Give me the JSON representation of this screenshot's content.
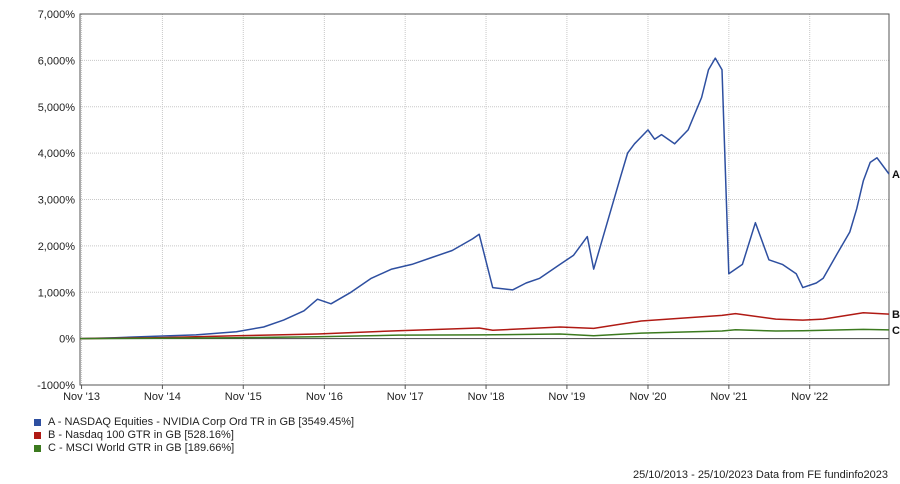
{
  "chart_data": {
    "type": "line",
    "x_ticks": [
      "Nov '13",
      "Nov '14",
      "Nov '15",
      "Nov '16",
      "Nov '17",
      "Nov '18",
      "Nov '19",
      "Nov '20",
      "Nov '21",
      "Nov '22"
    ],
    "y_ticks": [
      "7,000%",
      "6,000%",
      "5,000%",
      "4,000%",
      "3,000%",
      "2,000%",
      "1,000%",
      "0%",
      "-1000%"
    ],
    "ylim": [
      -1000,
      7000
    ],
    "xlim": [
      "2013-10-25",
      "2023-10-25"
    ],
    "grid": true,
    "series": [
      {
        "name": "A - NASDAQ Equities - NVIDIA Corp Ord TR in GB [3549.45%]",
        "end_label": "A",
        "color": "#2e4fa0",
        "x": [
          "2013-10-25",
          "2014-04",
          "2014-10",
          "2015-04",
          "2015-10",
          "2016-02",
          "2016-05",
          "2016-08",
          "2016-10",
          "2016-12",
          "2017-03",
          "2017-06",
          "2017-09",
          "2017-12",
          "2018-03",
          "2018-06",
          "2018-09",
          "2018-10",
          "2018-12",
          "2019-03",
          "2019-05",
          "2019-07",
          "2019-10",
          "2019-12",
          "2020-02",
          "2020-03",
          "2020-05",
          "2020-07",
          "2020-08",
          "2020-09",
          "2020-11",
          "2020-12",
          "2021-01",
          "2021-03",
          "2021-05",
          "2021-07",
          "2021-08",
          "2021-09",
          "2021-10",
          "2021-11",
          "2021-12",
          "2022-01",
          "2022-03",
          "2022-05",
          "2022-07",
          "2022-09",
          "2022-10",
          "2022-12",
          "2023-01",
          "2023-03",
          "2023-05",
          "2023-06",
          "2023-07",
          "2023-08",
          "2023-09",
          "2023-10-25"
        ],
        "values": [
          0,
          20,
          50,
          80,
          150,
          250,
          400,
          600,
          850,
          750,
          1000,
          1300,
          1500,
          1600,
          1750,
          1900,
          2150,
          2250,
          1100,
          1050,
          1200,
          1300,
          1600,
          1800,
          2200,
          1500,
          2500,
          3500,
          4000,
          4200,
          4500,
          4300,
          4400,
          4200,
          4500,
          5200,
          5800,
          6050,
          5800,
          1400,
          1500,
          1600,
          2500,
          1700,
          1600,
          1400,
          1100,
          1200,
          1300,
          1800,
          2300,
          2800,
          3400,
          3800,
          3900,
          3549
        ]
      },
      {
        "name": "B - Nasdaq 100 GTR in GB [528.16%]",
        "end_label": "B",
        "color": "#b01a14",
        "x": [
          "2013-10-25",
          "2014-10",
          "2015-10",
          "2016-10",
          "2017-10",
          "2018-10",
          "2018-12",
          "2019-10",
          "2020-03",
          "2020-10",
          "2021-10",
          "2021-12",
          "2022-06",
          "2022-10",
          "2023-01",
          "2023-07",
          "2023-10-25"
        ],
        "values": [
          0,
          20,
          60,
          100,
          170,
          230,
          180,
          250,
          220,
          380,
          500,
          540,
          420,
          400,
          420,
          560,
          528
        ]
      },
      {
        "name": "C - MSCI World GTR in GB [189.66%]",
        "end_label": "C",
        "color": "#3c7a1f",
        "x": [
          "2013-10-25",
          "2014-10",
          "2015-10",
          "2016-10",
          "2017-10",
          "2018-10",
          "2019-10",
          "2020-03",
          "2020-10",
          "2021-10",
          "2021-12",
          "2022-06",
          "2022-10",
          "2023-07",
          "2023-10-25"
        ],
        "values": [
          0,
          10,
          20,
          40,
          75,
          80,
          100,
          60,
          120,
          165,
          190,
          165,
          170,
          200,
          189
        ]
      }
    ]
  },
  "footer": {
    "text": "25/10/2013 - 25/10/2023 Data from FE fundinfo2023"
  }
}
